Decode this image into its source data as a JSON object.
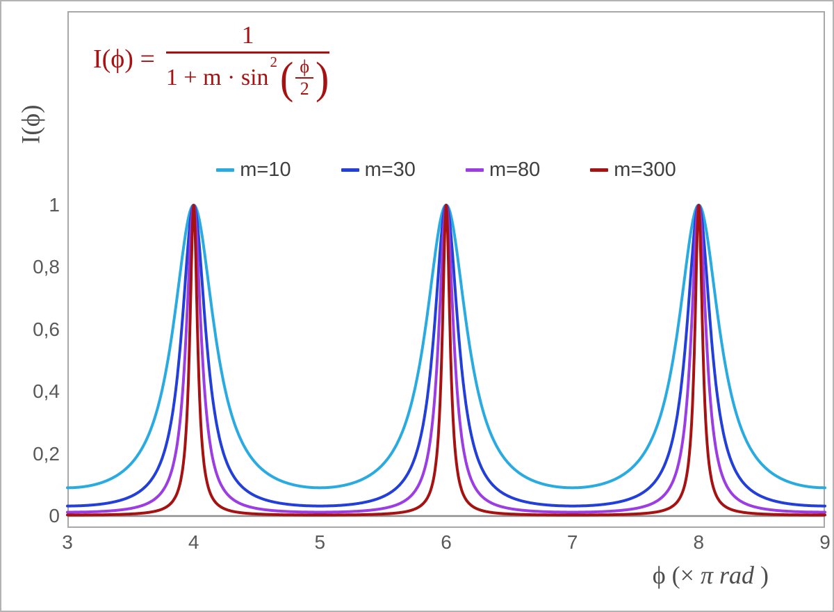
{
  "chart_data": {
    "type": "line",
    "title": "I(ϕ) = 1 / (1 + m·sin²(ϕ/2))",
    "function": "y = 1 / (1 + m * sin^2(x * π / 2)), with x expressed in units of π rad",
    "x_range": [
      3,
      9
    ],
    "y_range": [
      0,
      1
    ],
    "grid": false,
    "legend_position": "top-center",
    "peaks_at_x": [
      4,
      6,
      8
    ],
    "peak_value": 1,
    "x_ticks": [
      {
        "label": "3",
        "value": 3
      },
      {
        "label": "4",
        "value": 4
      },
      {
        "label": "5",
        "value": 5
      },
      {
        "label": "6",
        "value": 6
      },
      {
        "label": "7",
        "value": 7
      },
      {
        "label": "8",
        "value": 8
      },
      {
        "label": "9",
        "value": 9
      }
    ],
    "y_ticks": [
      {
        "label": "0",
        "value": 0
      },
      {
        "label": "0,2",
        "value": 0.2
      },
      {
        "label": "0,4",
        "value": 0.4
      },
      {
        "label": "0,6",
        "value": 0.6
      },
      {
        "label": "0,8",
        "value": 0.8
      },
      {
        "label": "1",
        "value": 1
      }
    ],
    "series": [
      {
        "name": "m=10",
        "m": 10,
        "color": "#29ABE2",
        "min_value": 0.091
      },
      {
        "name": "m=30",
        "m": 30,
        "color": "#233FD9",
        "min_value": 0.032
      },
      {
        "name": "m=80",
        "m": 80,
        "color": "#9B3DE3",
        "min_value": 0.012
      },
      {
        "name": "m=300",
        "m": 300,
        "color": "#A61212",
        "min_value": 0.003
      }
    ]
  },
  "formula": {
    "lhs": "I(ϕ) =",
    "numerator": "1",
    "denom_prefix": "1 + m · sin",
    "denom_sup": "2",
    "open_paren": "(",
    "close_paren": ")",
    "inner_num": "ϕ",
    "inner_den": "2",
    "color": "#A61212"
  },
  "axes": {
    "y_title": "I(ϕ)",
    "x_title_phi": "ϕ",
    "x_title_open": "(×",
    "x_title_italic": "π rad",
    "x_title_close": ")",
    "axis_color": "#8c8c8c",
    "frame_color": "#a8a8a8",
    "tick_color": "#595959"
  }
}
